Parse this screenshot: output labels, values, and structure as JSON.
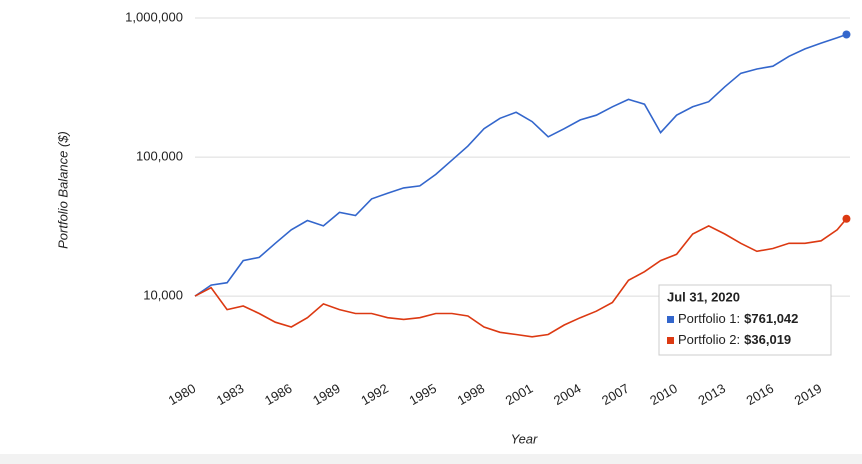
{
  "chart_data": {
    "type": "line",
    "x_label": "Year",
    "y_label": "Portfolio Balance ($)",
    "log_y": true,
    "grid": true,
    "xlim": [
      1980,
      2020.8
    ],
    "xticks": [
      1980,
      1983,
      1986,
      1989,
      1992,
      1995,
      1998,
      2001,
      2004,
      2007,
      2010,
      2013,
      2016,
      2019
    ],
    "ylim": [
      4100,
      1000000
    ],
    "yticks": [
      {
        "value": 10000,
        "label": "10,000"
      },
      {
        "value": 100000,
        "label": "100,000"
      },
      {
        "value": 1000000,
        "label": "1,000,000"
      }
    ],
    "x": [
      1980,
      1981,
      1982,
      1983,
      1984,
      1985,
      1986,
      1987,
      1988,
      1989,
      1990,
      1991,
      1992,
      1993,
      1994,
      1995,
      1996,
      1997,
      1998,
      1999,
      2000,
      2001,
      2002,
      2003,
      2004,
      2005,
      2006,
      2007,
      2008,
      2009,
      2010,
      2011,
      2012,
      2013,
      2014,
      2015,
      2016,
      2017,
      2018,
      2019,
      2020,
      2020.58
    ],
    "series": [
      {
        "name": "Portfolio 1:",
        "color": "#3366cc",
        "values": [
          10000,
          12000,
          12500,
          18000,
          19000,
          24000,
          30000,
          35000,
          32000,
          40000,
          38000,
          50000,
          55000,
          60000,
          62000,
          75000,
          95000,
          120000,
          160000,
          190000,
          210000,
          180000,
          140000,
          160000,
          185000,
          200000,
          230000,
          260000,
          240000,
          150000,
          200000,
          230000,
          250000,
          320000,
          400000,
          430000,
          450000,
          530000,
          600000,
          660000,
          720000,
          761042
        ],
        "value_labels": [
          null,
          null,
          null,
          null,
          null,
          null,
          null,
          null,
          null,
          null,
          null,
          null,
          null,
          null,
          null,
          null,
          null,
          null,
          null,
          null,
          null,
          null,
          null,
          null,
          null,
          null,
          null,
          null,
          null,
          null,
          null,
          null,
          null,
          null,
          null,
          null,
          null,
          null,
          null,
          null,
          null,
          "$761,042"
        ]
      },
      {
        "name": "Portfolio 2:",
        "color": "#dc3912",
        "values": [
          10000,
          11500,
          8000,
          8500,
          7500,
          6500,
          6000,
          7000,
          8800,
          8000,
          7500,
          7500,
          7000,
          6800,
          7000,
          7500,
          7500,
          7200,
          6000,
          5500,
          5300,
          5100,
          5300,
          6200,
          7000,
          7800,
          9000,
          13000,
          15000,
          18000,
          20000,
          28000,
          32000,
          28000,
          24000,
          21000,
          22000,
          24000,
          24000,
          25000,
          30000,
          36019
        ],
        "value_labels": [
          null,
          null,
          null,
          null,
          null,
          null,
          null,
          null,
          null,
          null,
          null,
          null,
          null,
          null,
          null,
          null,
          null,
          null,
          null,
          null,
          null,
          null,
          null,
          null,
          null,
          null,
          null,
          null,
          null,
          null,
          null,
          null,
          null,
          null,
          null,
          null,
          null,
          null,
          null,
          null,
          null,
          "$36,019"
        ]
      }
    ],
    "tooltip_title": "Jul 31, 2020"
  }
}
